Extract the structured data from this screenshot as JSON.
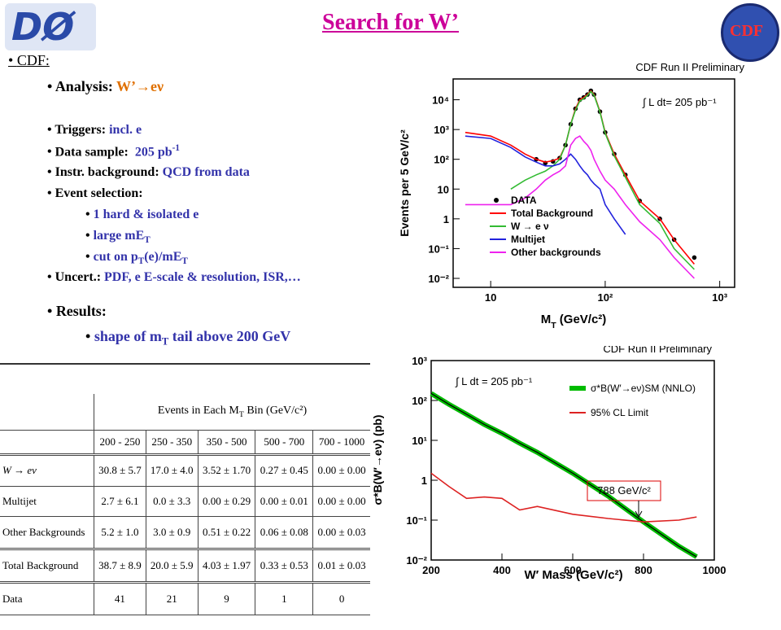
{
  "header": {
    "title": "Search for W’"
  },
  "logos": {
    "left": "DØ",
    "right": "CDF"
  },
  "bullets": {
    "cdf": "CDF:",
    "analysis": {
      "label": "Analysis: ",
      "value": "W’→eν"
    },
    "triggers": {
      "label": "Triggers: ",
      "value": "incl. e"
    },
    "data_sample": {
      "label": "Data sample:  ",
      "value": "205 pb",
      "sup": "-1"
    },
    "background": {
      "label": "Instr. background: ",
      "value": "QCD from data"
    },
    "selection": {
      "label": "Event selection:",
      "items": [
        [
          {
            "text": "1 hard & isolated e"
          }
        ],
        [
          {
            "text": "large mE"
          },
          {
            "sub": "T"
          }
        ],
        [
          {
            "text": "cut on p"
          },
          {
            "sub": "T"
          },
          {
            "text": "(e)/mE"
          },
          {
            "sub": "T"
          }
        ]
      ]
    },
    "uncert": {
      "label": "Uncert.: ",
      "value": "PDF, e E-scale & resolution, ISR,…"
    },
    "results": {
      "label": "Results:",
      "items": [
        [
          {
            "text": "shape of m"
          },
          {
            "sub": "T"
          },
          {
            "text": " tail above 200 GeV"
          }
        ]
      ]
    }
  },
  "table": {
    "caption": [
      {
        "text": "Events in Each M"
      },
      {
        "sub": "T"
      },
      {
        "text": " Bin (GeV/c²)"
      }
    ],
    "columns": [
      "200 - 250",
      "250 - 350",
      "350 - 500",
      "500 - 700",
      "700 - 1000"
    ],
    "rows": [
      [
        "W → eν",
        "30.8 ± 5.7",
        "17.0 ± 4.0",
        "3.52 ± 1.70",
        "0.27 ± 0.45",
        "0.00 ± 0.00"
      ],
      [
        "Multijet",
        "2.7 ± 6.1",
        "0.0 ± 3.3",
        "0.00 ± 0.29",
        "0.00 ± 0.01",
        "0.00 ± 0.00"
      ],
      [
        "Other Backgrounds",
        "5.2 ± 1.0",
        "3.0 ± 0.9",
        "0.51 ± 0.22",
        "0.06 ± 0.08",
        "0.00 ± 0.03"
      ],
      [
        "Total Background",
        "38.7 ± 8.9",
        "20.0 ± 5.9",
        "4.03 ± 1.97",
        "0.33 ± 0.53",
        "0.01 ± 0.03"
      ],
      [
        "Data",
        "41",
        "21",
        "9",
        "1",
        "0"
      ]
    ]
  },
  "chart_data": [
    {
      "type": "line",
      "title": "CDF Run II Preliminary",
      "xlabel": [
        {
          "text": "M"
        },
        {
          "sub": "T"
        },
        {
          "text": " (GeV/c²)"
        }
      ],
      "ylabel": "Events per 5 GeV/c²",
      "annotations": [
        "∫ L dt= 205 pb⁻¹"
      ],
      "xlog": true,
      "ylog": true,
      "xlim": [
        4.7,
        1350
      ],
      "ylim": [
        0.005,
        50000
      ],
      "xticks": [
        10,
        {
          "value": 100,
          "label": "10²"
        },
        {
          "value": 1000,
          "label": "10³"
        }
      ],
      "yticks": [
        {
          "value": 0.01,
          "label": "10⁻²"
        },
        {
          "value": 0.1,
          "label": "10⁻¹"
        },
        1,
        10,
        {
          "value": 100,
          "label": "10²"
        },
        {
          "value": 1000,
          "label": "10³"
        },
        {
          "value": 10000,
          "label": "10⁴"
        }
      ],
      "x": [
        6,
        10,
        15,
        20,
        25,
        30,
        35,
        40,
        45,
        50,
        55,
        60,
        65,
        70,
        75,
        80,
        90,
        100,
        120,
        150,
        200,
        300,
        400,
        600
      ],
      "series": [
        {
          "name": "DATA",
          "color": "#000000",
          "marker": true,
          "values": [
            null,
            null,
            null,
            null,
            100,
            75,
            85,
            110,
            300,
            1500,
            5000,
            10000,
            12000,
            15000,
            20000,
            15000,
            4000,
            800,
            150,
            30,
            4,
            1,
            0.2,
            0.05
          ]
        },
        {
          "name": "Total Background",
          "color": "#ff0000",
          "values": [
            800,
            600,
            300,
            150,
            100,
            80,
            90,
            110,
            300,
            1500,
            5000,
            10000,
            12000,
            15000,
            20000,
            15000,
            4000,
            800,
            150,
            30,
            4,
            1,
            0.2,
            0.03
          ]
        },
        {
          "name": "W → e ν",
          "color": "#33bb33",
          "values": [
            null,
            null,
            10,
            20,
            30,
            40,
            60,
            100,
            300,
            1500,
            4500,
            9000,
            11000,
            14000,
            19000,
            14000,
            3800,
            750,
            130,
            25,
            3,
            0.7,
            0.1,
            0.02
          ]
        },
        {
          "name": "Multijet",
          "color": "#2222dd",
          "values": [
            600,
            500,
            250,
            120,
            80,
            60,
            60,
            70,
            100,
            150,
            100,
            60,
            40,
            30,
            20,
            15,
            10,
            3,
            1,
            0.3,
            null,
            null,
            null,
            null
          ]
        },
        {
          "name": "Other backgrounds",
          "color": "#ee22ee",
          "values": [
            3,
            3,
            3,
            5,
            10,
            20,
            30,
            40,
            60,
            300,
            500,
            600,
            400,
            300,
            200,
            100,
            40,
            20,
            10,
            3,
            0.8,
            0.2,
            0.05,
            0.01
          ]
        }
      ]
    },
    {
      "type": "line",
      "title": "CDF Run II Preliminary",
      "xlabel": "W′ Mass (GeV/c²)",
      "ylabel": "σ*B(W′→eν) (pb)",
      "annotations": [
        "∫ L dt = 205 pb⁻¹",
        "788 GeV/c²"
      ],
      "xlog": false,
      "ylog": true,
      "xlim": [
        200,
        1000
      ],
      "ylim": [
        0.01,
        1000
      ],
      "xticks": [
        200,
        400,
        600,
        800,
        1000
      ],
      "yticks": [
        {
          "value": 0.01,
          "label": "10⁻²"
        },
        {
          "value": 0.1,
          "label": "10⁻¹"
        },
        1,
        {
          "value": 10,
          "label": "10¹"
        },
        {
          "value": 100,
          "label": "10²"
        },
        {
          "value": 1000,
          "label": "10³"
        }
      ],
      "x": [
        200,
        250,
        300,
        350,
        400,
        450,
        500,
        600,
        700,
        800,
        900,
        950
      ],
      "series": [
        {
          "name": "σ*B(W′→eν)SM (NNLO)",
          "color": "#00bb00",
          "line_width": 6,
          "values": [
            150,
            80,
            45,
            25,
            15,
            8.5,
            5,
            1.5,
            0.4,
            0.09,
            0.022,
            0.012
          ]
        },
        {
          "name": "95% CL Limit",
          "color": "#dd2222",
          "values": [
            1.5,
            0.7,
            0.35,
            0.38,
            0.35,
            0.18,
            0.22,
            0.14,
            0.11,
            0.09,
            0.1,
            0.12
          ]
        }
      ]
    }
  ]
}
